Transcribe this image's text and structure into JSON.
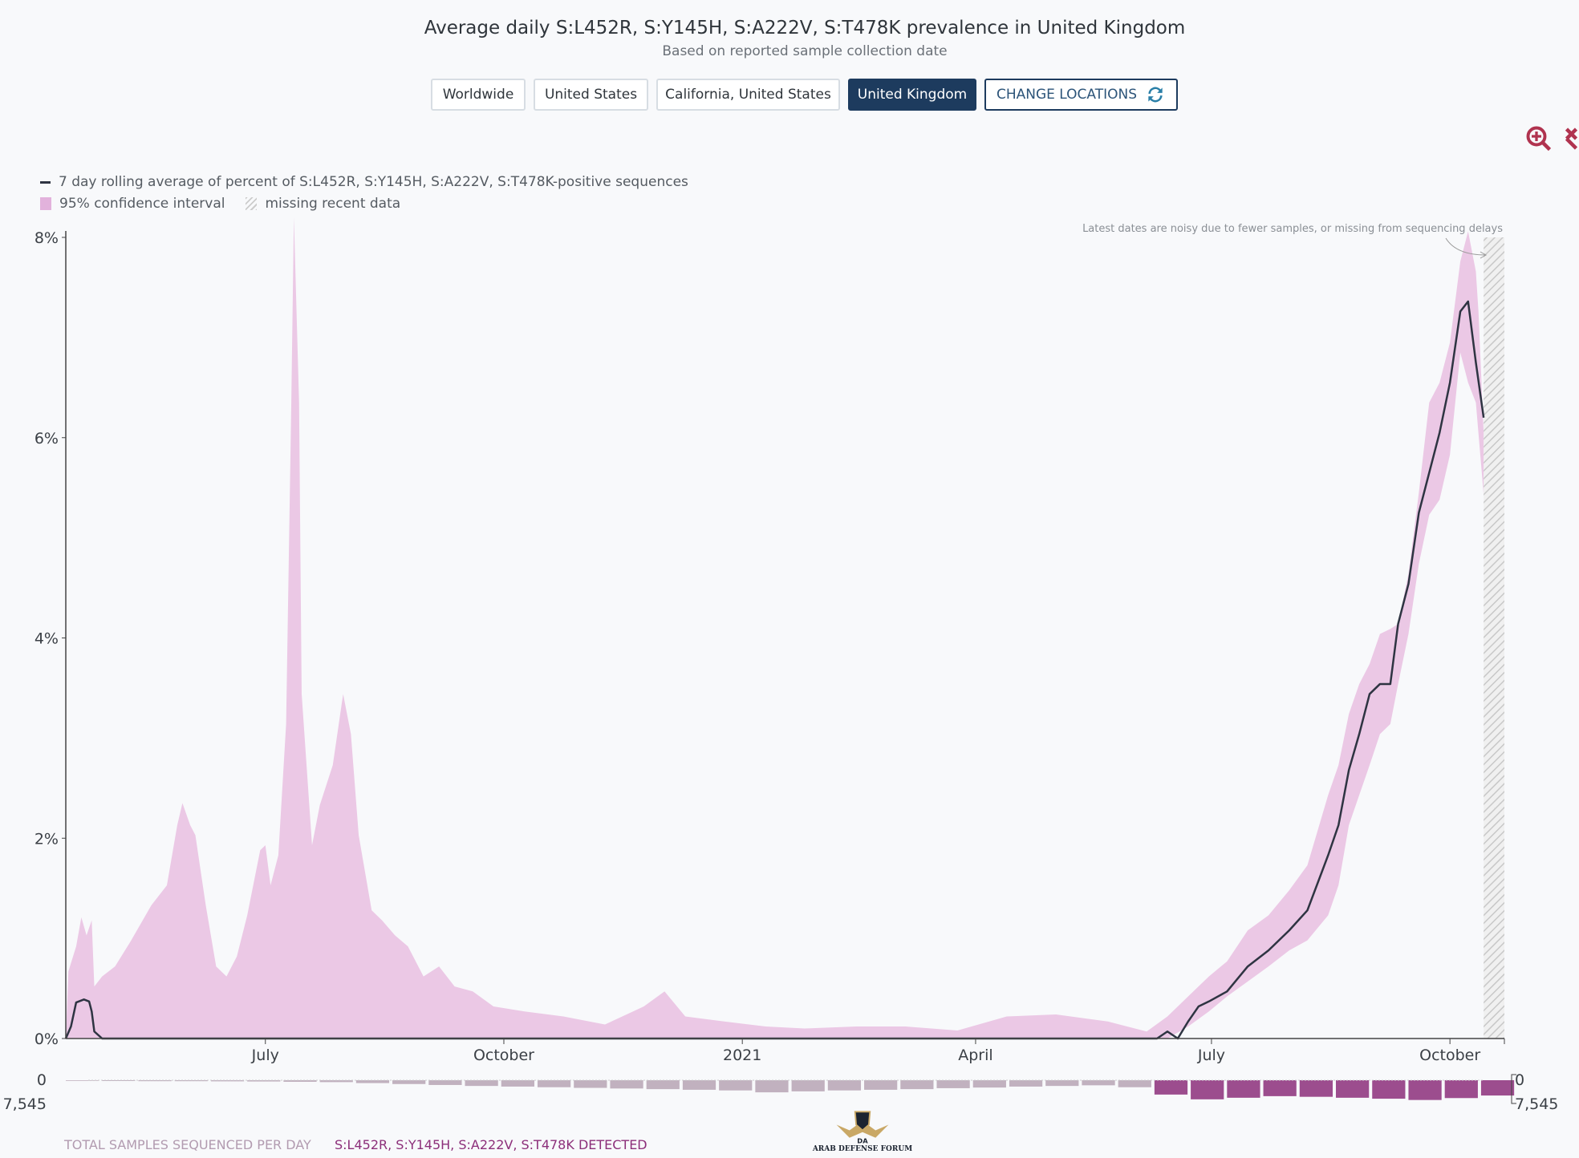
{
  "header": {
    "title": "Average daily S:L452R, S:Y145H, S:A222V, S:T478K prevalence in United Kingdom",
    "subtitle": "Based on reported sample collection date"
  },
  "locations": {
    "buttons": [
      "Worldwide",
      "United States",
      "California, United States",
      "United Kingdom"
    ],
    "selected": "United Kingdom",
    "change_label": "CHANGE LOCATIONS"
  },
  "toolbar": {
    "zoom_icon": "zoom-in-icon",
    "reset_icon": "collapse-icon"
  },
  "colors": {
    "ci": "#ebc8e5",
    "line": "#2e3442",
    "detected": "#8c2f7a",
    "total": "#b7a4b4",
    "accent": "#1d3b5e",
    "tool": "#b0334f"
  },
  "legend": {
    "line": "7 day rolling average of percent of S:L452R, S:Y145H, S:A222V, S:T478K-positive sequences",
    "ci": "95% confidence interval",
    "missing": "missing recent data"
  },
  "annotation": "Latest dates are noisy due to fewer samples, or missing from sequencing delays",
  "chart_data": [
    {
      "type": "area",
      "x_ticks": [
        "July",
        "October",
        "2021",
        "April",
        "July",
        "October"
      ],
      "x_tick_dates": [
        "2020-07-01",
        "2020-10-01",
        "2021-01-01",
        "2021-04-01",
        "2021-07-01",
        "2021-10-01"
      ],
      "xlim": [
        "2020-04-15",
        "2021-10-22"
      ],
      "y_ticks": [
        "0%",
        "2%",
        "4%",
        "6%",
        "8%"
      ],
      "ylim": [
        0,
        8
      ],
      "missing_data_from": "2021-10-14",
      "ci_upper": [
        [
          "2020-04-15",
          0
        ],
        [
          "2020-04-16",
          0.67
        ],
        [
          "2020-04-19",
          0.92
        ],
        [
          "2020-04-21",
          1.21
        ],
        [
          "2020-04-23",
          1.03
        ],
        [
          "2020-04-25",
          1.18
        ],
        [
          "2020-04-26",
          0.52
        ],
        [
          "2020-04-29",
          0.62
        ],
        [
          "2020-05-04",
          0.72
        ],
        [
          "2020-05-10",
          0.97
        ],
        [
          "2020-05-18",
          1.33
        ],
        [
          "2020-05-24",
          1.53
        ],
        [
          "2020-05-28",
          2.13
        ],
        [
          "2020-05-30",
          2.35
        ],
        [
          "2020-06-02",
          2.13
        ],
        [
          "2020-06-04",
          2.03
        ],
        [
          "2020-06-08",
          1.33
        ],
        [
          "2020-06-12",
          0.72
        ],
        [
          "2020-06-16",
          0.62
        ],
        [
          "2020-06-20",
          0.82
        ],
        [
          "2020-06-24",
          1.23
        ],
        [
          "2020-06-29",
          1.88
        ],
        [
          "2020-07-01",
          1.93
        ],
        [
          "2020-07-03",
          1.53
        ],
        [
          "2020-07-06",
          1.83
        ],
        [
          "2020-07-09",
          3.14
        ],
        [
          "2020-07-11",
          6.35
        ],
        [
          "2020-07-12",
          8.2
        ],
        [
          "2020-07-14",
          6.35
        ],
        [
          "2020-07-15",
          3.44
        ],
        [
          "2020-07-19",
          1.93
        ],
        [
          "2020-07-22",
          2.33
        ],
        [
          "2020-07-27",
          2.73
        ],
        [
          "2020-07-31",
          3.44
        ],
        [
          "2020-08-03",
          3.04
        ],
        [
          "2020-08-06",
          2.03
        ],
        [
          "2020-08-11",
          1.28
        ],
        [
          "2020-08-15",
          1.18
        ],
        [
          "2020-08-20",
          1.03
        ],
        [
          "2020-08-25",
          0.92
        ],
        [
          "2020-08-31",
          0.62
        ],
        [
          "2020-09-06",
          0.72
        ],
        [
          "2020-09-12",
          0.52
        ],
        [
          "2020-09-19",
          0.47
        ],
        [
          "2020-09-27",
          0.32
        ],
        [
          "2020-10-09",
          0.27
        ],
        [
          "2020-10-24",
          0.22
        ],
        [
          "2020-11-09",
          0.14
        ],
        [
          "2020-11-24",
          0.32
        ],
        [
          "2020-12-02",
          0.47
        ],
        [
          "2020-12-10",
          0.22
        ],
        [
          "2020-12-25",
          0.17
        ],
        [
          "2021-01-10",
          0.12
        ],
        [
          "2021-01-25",
          0.1
        ],
        [
          "2021-02-14",
          0.12
        ],
        [
          "2021-03-05",
          0.12
        ],
        [
          "2021-03-25",
          0.08
        ],
        [
          "2021-04-13",
          0.22
        ],
        [
          "2021-05-02",
          0.24
        ],
        [
          "2021-05-22",
          0.17
        ],
        [
          "2021-06-06",
          0.07
        ],
        [
          "2021-06-14",
          0.22
        ],
        [
          "2021-06-22",
          0.42
        ],
        [
          "2021-06-30",
          0.62
        ],
        [
          "2021-07-07",
          0.77
        ],
        [
          "2021-07-15",
          1.08
        ],
        [
          "2021-07-23",
          1.23
        ],
        [
          "2021-07-31",
          1.48
        ],
        [
          "2021-08-07",
          1.73
        ],
        [
          "2021-08-15",
          2.43
        ],
        [
          "2021-08-19",
          2.73
        ],
        [
          "2021-08-23",
          3.24
        ],
        [
          "2021-08-27",
          3.54
        ],
        [
          "2021-08-31",
          3.74
        ],
        [
          "2021-09-04",
          4.04
        ],
        [
          "2021-09-08",
          4.09
        ],
        [
          "2021-09-11",
          4.14
        ],
        [
          "2021-09-15",
          4.64
        ],
        [
          "2021-09-19",
          5.45
        ],
        [
          "2021-09-23",
          6.35
        ],
        [
          "2021-09-27",
          6.55
        ],
        [
          "2021-10-01",
          6.95
        ],
        [
          "2021-10-05",
          7.76
        ],
        [
          "2021-10-08",
          8.06
        ],
        [
          "2021-10-11",
          7.66
        ],
        [
          "2021-10-12",
          7.26
        ],
        [
          "2021-10-14",
          6.05
        ]
      ],
      "ci_lower": [
        [
          "2020-04-15",
          0
        ],
        [
          "2021-06-14",
          0
        ],
        [
          "2021-06-22",
          0.12
        ],
        [
          "2021-06-30",
          0.27
        ],
        [
          "2021-07-07",
          0.42
        ],
        [
          "2021-07-15",
          0.57
        ],
        [
          "2021-07-23",
          0.72
        ],
        [
          "2021-07-31",
          0.88
        ],
        [
          "2021-08-07",
          0.98
        ],
        [
          "2021-08-15",
          1.23
        ],
        [
          "2021-08-19",
          1.53
        ],
        [
          "2021-08-23",
          2.13
        ],
        [
          "2021-08-27",
          2.43
        ],
        [
          "2021-08-31",
          2.73
        ],
        [
          "2021-09-04",
          3.04
        ],
        [
          "2021-09-08",
          3.14
        ],
        [
          "2021-09-11",
          3.54
        ],
        [
          "2021-09-15",
          4.04
        ],
        [
          "2021-09-19",
          4.74
        ],
        [
          "2021-09-23",
          5.23
        ],
        [
          "2021-09-27",
          5.38
        ],
        [
          "2021-10-01",
          5.83
        ],
        [
          "2021-10-05",
          6.85
        ],
        [
          "2021-10-08",
          6.55
        ],
        [
          "2021-10-11",
          6.35
        ],
        [
          "2021-10-14",
          5.43
        ]
      ],
      "rolling_avg": [
        [
          "2020-04-15",
          0
        ],
        [
          "2020-04-17",
          0.12
        ],
        [
          "2020-04-19",
          0.36
        ],
        [
          "2020-04-22",
          0.39
        ],
        [
          "2020-04-24",
          0.37
        ],
        [
          "2020-04-25",
          0.27
        ],
        [
          "2020-04-26",
          0.07
        ],
        [
          "2020-04-29",
          0
        ],
        [
          "2021-06-10",
          0
        ],
        [
          "2021-06-14",
          0.07
        ],
        [
          "2021-06-18",
          0
        ],
        [
          "2021-06-22",
          0.17
        ],
        [
          "2021-06-26",
          0.32
        ],
        [
          "2021-06-30",
          0.37
        ],
        [
          "2021-07-07",
          0.47
        ],
        [
          "2021-07-15",
          0.72
        ],
        [
          "2021-07-23",
          0.88
        ],
        [
          "2021-07-31",
          1.08
        ],
        [
          "2021-08-07",
          1.28
        ],
        [
          "2021-08-15",
          1.83
        ],
        [
          "2021-08-19",
          2.13
        ],
        [
          "2021-08-23",
          2.68
        ],
        [
          "2021-08-27",
          3.04
        ],
        [
          "2021-08-31",
          3.44
        ],
        [
          "2021-09-04",
          3.54
        ],
        [
          "2021-09-08",
          3.54
        ],
        [
          "2021-09-11",
          4.14
        ],
        [
          "2021-09-15",
          4.54
        ],
        [
          "2021-09-19",
          5.25
        ],
        [
          "2021-09-23",
          5.65
        ],
        [
          "2021-09-27",
          6.05
        ],
        [
          "2021-10-01",
          6.55
        ],
        [
          "2021-10-05",
          7.26
        ],
        [
          "2021-10-08",
          7.36
        ],
        [
          "2021-10-11",
          6.75
        ],
        [
          "2021-10-14",
          6.2
        ]
      ]
    },
    {
      "type": "bar",
      "y_ticks": [
        "0",
        "7,545"
      ],
      "ylim": [
        0,
        7545
      ],
      "labels": {
        "total": "TOTAL SAMPLES SEQUENCED PER DAY",
        "detected": "S:L452R, S:Y145H, S:A222V, S:T478K DETECTED"
      },
      "dates": [
        "2020-04-15",
        "2020-04-29",
        "2020-05-13",
        "2020-05-27",
        "2020-06-10",
        "2020-06-24",
        "2020-07-08",
        "2020-07-22",
        "2020-08-05",
        "2020-08-19",
        "2020-09-02",
        "2020-09-16",
        "2020-09-30",
        "2020-10-14",
        "2020-10-28",
        "2020-11-11",
        "2020-11-25",
        "2020-12-09",
        "2020-12-23",
        "2021-01-06",
        "2021-01-20",
        "2021-02-03",
        "2021-02-17",
        "2021-03-03",
        "2021-03-17",
        "2021-03-31",
        "2021-04-14",
        "2021-04-28",
        "2021-05-12",
        "2021-05-26",
        "2021-06-09",
        "2021-06-23",
        "2021-07-07",
        "2021-07-21",
        "2021-08-04",
        "2021-08-18",
        "2021-09-01",
        "2021-09-15",
        "2021-09-29",
        "2021-10-13"
      ],
      "total": [
        200,
        250,
        300,
        300,
        350,
        400,
        500,
        600,
        900,
        1200,
        1500,
        1800,
        2000,
        2200,
        2400,
        2600,
        2800,
        3000,
        3200,
        3800,
        3500,
        3200,
        3000,
        2800,
        2500,
        2300,
        2000,
        1800,
        1600,
        2200,
        4500,
        6000,
        5500,
        5000,
        5200,
        5500,
        5800,
        6200,
        5600,
        4800
      ],
      "detected": [
        0,
        0,
        0,
        0,
        0,
        0,
        0,
        0,
        0,
        0,
        0,
        0,
        0,
        0,
        0,
        0,
        0,
        0,
        0,
        0,
        0,
        0,
        0,
        0,
        0,
        0,
        0,
        0,
        0,
        0,
        3,
        15,
        25,
        40,
        60,
        110,
        190,
        280,
        340,
        320
      ]
    }
  ],
  "watermark": {
    "text": "ARAB DEFENSE FORUM",
    "monogram": "DA"
  }
}
